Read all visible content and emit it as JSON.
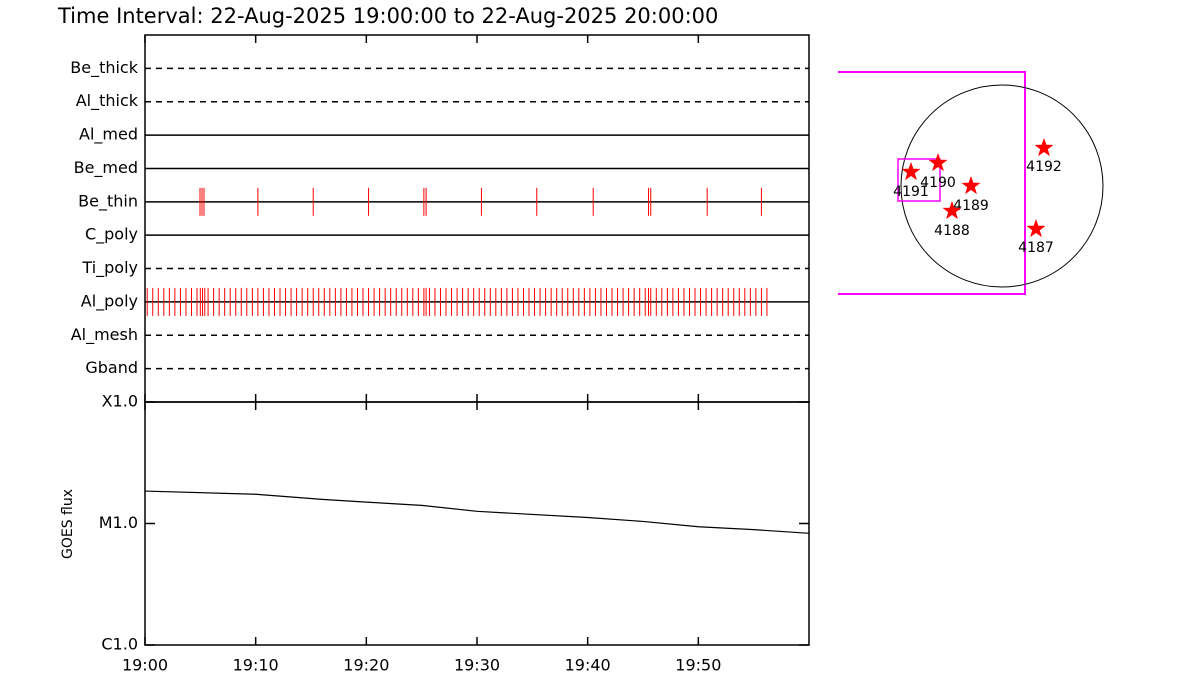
{
  "title": "Time Interval: 22-Aug-2025 19:00:00 to 22-Aug-2025 20:00:00",
  "chart_data": [
    {
      "type": "timeline",
      "color": "#ff0000",
      "xlim": [
        0,
        60
      ],
      "xticks": [
        0,
        10,
        20,
        30,
        40,
        50
      ],
      "filters": [
        {
          "name": "Be_thick",
          "style": "dashed",
          "times": []
        },
        {
          "name": "Al_thick",
          "style": "dashed",
          "times": []
        },
        {
          "name": "Al_med",
          "style": "solid",
          "times": []
        },
        {
          "name": "Be_med",
          "style": "solid",
          "times": []
        },
        {
          "name": "Be_thin",
          "style": "solid",
          "times": [
            4.97,
            5.15,
            5.33,
            10.2,
            15.2,
            20.2,
            25.2,
            25.4,
            30.4,
            35.4,
            40.5,
            45.5,
            45.7,
            50.8,
            55.7
          ]
        },
        {
          "name": "C_poly",
          "style": "solid",
          "times": []
        },
        {
          "name": "Ti_poly",
          "style": "dashed",
          "times": []
        },
        {
          "name": "Al_poly",
          "style": "solid",
          "times": [
            0.2,
            0.7,
            1.2,
            1.7,
            2.2,
            2.7,
            3.2,
            3.7,
            4.2,
            4.7,
            5.0,
            5.2,
            5.4,
            5.7,
            6.2,
            6.7,
            7.2,
            7.7,
            8.2,
            8.7,
            9.2,
            9.7,
            10.2,
            10.7,
            11.2,
            11.7,
            12.2,
            12.7,
            13.2,
            13.7,
            14.2,
            14.7,
            15.2,
            15.7,
            16.2,
            16.7,
            17.2,
            17.7,
            18.2,
            18.7,
            19.2,
            19.7,
            20.2,
            20.7,
            21.2,
            21.7,
            22.2,
            22.7,
            23.2,
            23.7,
            24.2,
            24.7,
            25.2,
            25.4,
            25.7,
            26.2,
            26.7,
            27.2,
            27.7,
            28.2,
            28.7,
            29.2,
            29.7,
            30.2,
            30.7,
            31.2,
            31.7,
            32.2,
            32.7,
            33.2,
            33.7,
            34.2,
            34.7,
            35.2,
            35.7,
            36.2,
            36.7,
            37.2,
            37.7,
            38.2,
            38.7,
            39.2,
            39.7,
            40.2,
            40.7,
            41.2,
            41.7,
            42.2,
            42.7,
            43.2,
            43.7,
            44.2,
            44.7,
            45.2,
            45.5,
            45.7,
            46.2,
            46.7,
            47.2,
            47.7,
            48.2,
            48.7,
            49.2,
            49.7,
            50.2,
            50.7,
            51.2,
            51.7,
            52.2,
            52.7,
            53.2,
            53.7,
            54.2,
            54.7,
            55.2,
            55.7,
            56.2
          ]
        },
        {
          "name": "Al_mesh",
          "style": "dashed",
          "times": []
        },
        {
          "name": "Gband",
          "style": "dashed",
          "times": []
        }
      ]
    },
    {
      "type": "line",
      "ylabel": "GOES flux",
      "color": "#000000",
      "log_scale": true,
      "x": [
        0,
        10,
        16,
        20,
        25,
        30,
        40,
        45,
        50,
        55,
        60
      ],
      "values": [
        1.85e-05,
        1.74e-05,
        1.58e-05,
        1.5e-05,
        1.41e-05,
        1.26e-05,
        1.12e-05,
        1.04e-05,
        9.4e-06,
        8.9e-06,
        8.3e-06
      ],
      "xlim": [
        0,
        60
      ],
      "xticks": [
        {
          "value": 0,
          "label": "19:00"
        },
        {
          "value": 10,
          "label": "19:10"
        },
        {
          "value": 20,
          "label": "19:20"
        },
        {
          "value": 30,
          "label": "19:30"
        },
        {
          "value": 40,
          "label": "19:40"
        },
        {
          "value": 50,
          "label": "19:50"
        }
      ],
      "ylim": [
        1e-06,
        0.0001
      ],
      "yticks": [
        {
          "value": 1e-06,
          "label": "C1.0"
        },
        {
          "value": 1e-05,
          "label": "M1.0"
        },
        {
          "value": 0.0001,
          "label": "X1.0"
        }
      ]
    }
  ],
  "disk": {
    "regions": [
      {
        "label": "4191"
      },
      {
        "label": "4190"
      },
      {
        "label": "4189"
      },
      {
        "label": "4188"
      },
      {
        "label": "4192"
      },
      {
        "label": "4187"
      }
    ]
  }
}
